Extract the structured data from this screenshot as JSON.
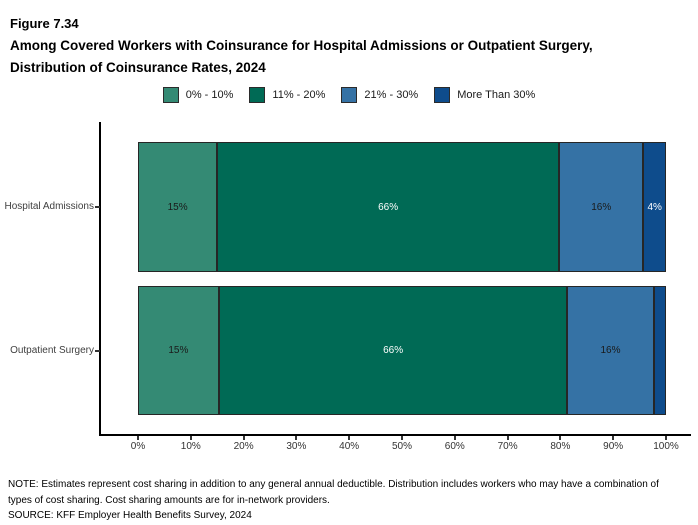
{
  "chart_data": {
    "type": "bar",
    "orientation": "horizontal",
    "stacked": true,
    "figure_number": "Figure 7.34",
    "title_line1": "Among Covered Workers with Coinsurance for Hospital Admissions or Outpatient Surgery,",
    "title_line2": "Distribution of Coinsurance Rates, 2024",
    "categories": [
      "Hospital Admissions",
      "Outpatient Surgery"
    ],
    "series": [
      {
        "name": "0% - 10%",
        "color": "#348A74",
        "label_color": "#1a1a1a",
        "values": [
          15,
          15
        ],
        "labels": [
          "15%",
          "15%"
        ]
      },
      {
        "name": "11% - 20%",
        "color": "#006A55",
        "label_color": "#ffffff",
        "values": [
          66,
          66
        ],
        "labels": [
          "66%",
          "66%"
        ]
      },
      {
        "name": "21% - 30%",
        "color": "#3572A5",
        "label_color": "#1a1a1a",
        "values": [
          16,
          16
        ],
        "labels": [
          "16%",
          "16%"
        ]
      },
      {
        "name": "More Than 30%",
        "color": "#0E4C8C",
        "label_color": "#ffffff",
        "values": [
          4,
          2
        ],
        "labels": [
          "4%",
          ""
        ]
      }
    ],
    "xlim": [
      0,
      100
    ],
    "x_ticks": [
      "0%",
      "10%",
      "20%",
      "30%",
      "40%",
      "50%",
      "60%",
      "70%",
      "80%",
      "90%",
      "100%"
    ],
    "grid": false,
    "legend_position": "top"
  },
  "footer": {
    "note_line1": "NOTE: Estimates represent cost sharing in addition to any general annual deductible. Distribution includes workers who may have a combination of",
    "note_line2": "types of cost sharing. Cost sharing amounts are for in-network providers.",
    "source": "SOURCE: KFF Employer Health Benefits Survey, 2024"
  }
}
